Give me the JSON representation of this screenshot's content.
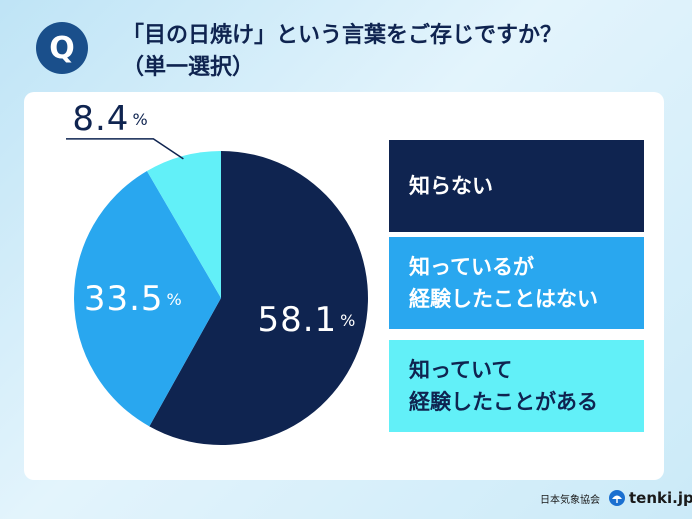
{
  "header": {
    "badge": "Q",
    "question_line1": "「目の日焼け」という言葉をご存じですか？",
    "question_line2": "（単一選択）"
  },
  "chart_data": {
    "type": "pie",
    "start_angle_deg": 0,
    "direction": "clockwise",
    "unit": "%",
    "slices": [
      {
        "label": "知らない",
        "label_lines": [
          "知らない"
        ],
        "value": 58.1,
        "value_text": "58.1",
        "color": "#0f2450",
        "label_color": "#ffffff"
      },
      {
        "label": "知っているが経験したことはない",
        "label_lines": [
          "知っているが",
          "経験したことはない"
        ],
        "value": 33.5,
        "value_text": "33.5",
        "color": "#29a7ef",
        "label_color": "#ffffff"
      },
      {
        "label": "知っていて経験したことがある",
        "label_lines": [
          "知っていて",
          "経験したことがある"
        ],
        "value": 8.4,
        "value_text": "8.4",
        "color": "#62f0f8",
        "label_color": "#0f2450"
      }
    ]
  },
  "footer": {
    "org": "日本気象協会",
    "brand": "tenki.jp"
  }
}
